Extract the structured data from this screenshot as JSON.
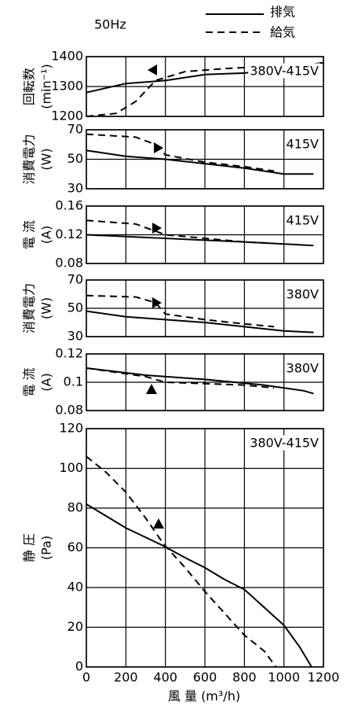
{
  "legend": {
    "title": "50Hz",
    "entries": [
      {
        "name": "排気",
        "style": "solid"
      },
      {
        "name": "給気",
        "style": "dashed"
      }
    ]
  },
  "xlabel": "風 量 (m³/h)",
  "chart_data": [
    {
      "type": "line",
      "ylabel": "回転数",
      "yunit": "(min⁻¹)",
      "annotation": "380V-415V",
      "xlim": [
        0,
        1200
      ],
      "xticks": [
        0,
        200,
        400,
        600,
        800,
        1000,
        1200
      ],
      "ylim": [
        1200,
        1400
      ],
      "yticks": [
        1200,
        1300,
        1400
      ],
      "series": [
        {
          "style": "solid",
          "x": [
            0,
            200,
            400,
            600,
            800,
            1000,
            1200
          ],
          "values": [
            1280,
            1310,
            1320,
            1340,
            1345,
            1360,
            1380
          ]
        },
        {
          "style": "dashed",
          "x": [
            0,
            150,
            250,
            350,
            500,
            700,
            1000
          ],
          "values": [
            1200,
            1210,
            1250,
            1320,
            1350,
            1360,
            1370
          ]
        }
      ]
    },
    {
      "type": "line",
      "ylabel": "消費電力",
      "yunit": "(W)",
      "annotation": "415V",
      "xlim": [
        0,
        1200
      ],
      "xticks": [
        0,
        200,
        400,
        600,
        800,
        1000,
        1200
      ],
      "ylim": [
        30,
        70
      ],
      "yticks": [
        30,
        50,
        70
      ],
      "series": [
        {
          "style": "solid",
          "x": [
            0,
            200,
            400,
            600,
            800,
            1000,
            1150
          ],
          "values": [
            56,
            52,
            50,
            47,
            44,
            40,
            40
          ]
        },
        {
          "style": "dashed",
          "x": [
            0,
            250,
            350,
            400,
            600,
            800,
            950
          ],
          "values": [
            67,
            65,
            60,
            53,
            48,
            45,
            42
          ]
        }
      ]
    },
    {
      "type": "line",
      "ylabel": "電 流",
      "yunit": "(A)",
      "annotation": "415V",
      "xlim": [
        0,
        1200
      ],
      "xticks": [
        0,
        200,
        400,
        600,
        800,
        1000,
        1200
      ],
      "ylim": [
        0.08,
        0.16
      ],
      "yticks": [
        0.08,
        0.12,
        0.16
      ],
      "series": [
        {
          "style": "solid",
          "x": [
            0,
            400,
            800,
            1150
          ],
          "values": [
            0.12,
            0.115,
            0.11,
            0.105
          ]
        },
        {
          "style": "dashed",
          "x": [
            0,
            250,
            350,
            400,
            600,
            800,
            950
          ],
          "values": [
            0.14,
            0.135,
            0.125,
            0.12,
            0.115,
            0.11,
            0.108
          ]
        }
      ]
    },
    {
      "type": "line",
      "ylabel": "消費電力",
      "yunit": "(W)",
      "annotation": "380V",
      "xlim": [
        0,
        1200
      ],
      "xticks": [
        0,
        200,
        400,
        600,
        800,
        1000,
        1200
      ],
      "ylim": [
        30,
        70
      ],
      "yticks": [
        30,
        50,
        70
      ],
      "series": [
        {
          "style": "solid",
          "x": [
            0,
            200,
            400,
            600,
            800,
            1000,
            1150
          ],
          "values": [
            48,
            44,
            42,
            40,
            37,
            34,
            33
          ]
        },
        {
          "style": "dashed",
          "x": [
            0,
            250,
            350,
            400,
            600,
            800,
            950
          ],
          "values": [
            59,
            58,
            54,
            46,
            42,
            39,
            37
          ]
        }
      ]
    },
    {
      "type": "line",
      "ylabel": "電 流",
      "yunit": "(A)",
      "annotation": "380V",
      "xlim": [
        0,
        1200
      ],
      "xticks": [
        0,
        200,
        400,
        600,
        800,
        1000,
        1200
      ],
      "ylim": [
        0.08,
        0.12
      ],
      "yticks": [
        0.08,
        0.1,
        0.12
      ],
      "series": [
        {
          "style": "solid",
          "x": [
            0,
            300,
            600,
            900,
            1100,
            1150
          ],
          "values": [
            0.11,
            0.105,
            0.102,
            0.098,
            0.094,
            0.092
          ]
        },
        {
          "style": "dashed",
          "x": [
            0,
            200,
            300,
            400,
            600,
            800,
            950
          ],
          "values": [
            0.11,
            0.106,
            0.104,
            0.1,
            0.099,
            0.098,
            0.096
          ]
        }
      ]
    },
    {
      "type": "line",
      "ylabel": "静 圧",
      "yunit": "(Pa)",
      "annotation": "380V-415V",
      "show_xticks": true,
      "xlim": [
        0,
        1200
      ],
      "xticks": [
        0,
        200,
        400,
        600,
        800,
        1000,
        1200
      ],
      "ylim": [
        0,
        120
      ],
      "yticks": [
        0,
        20,
        40,
        60,
        80,
        100,
        120
      ],
      "series": [
        {
          "style": "solid",
          "x": [
            0,
            200,
            390,
            500,
            600,
            700,
            800,
            900,
            1000,
            1080,
            1140
          ],
          "values": [
            82,
            70,
            61,
            55,
            50,
            44,
            39,
            30,
            21,
            10,
            0
          ]
        },
        {
          "style": "dashed",
          "x": [
            0,
            100,
            200,
            300,
            390,
            500,
            600,
            700,
            800,
            900,
            960
          ],
          "values": [
            106,
            98,
            88,
            75,
            62,
            50,
            38,
            27,
            16,
            8,
            0
          ]
        }
      ]
    }
  ]
}
